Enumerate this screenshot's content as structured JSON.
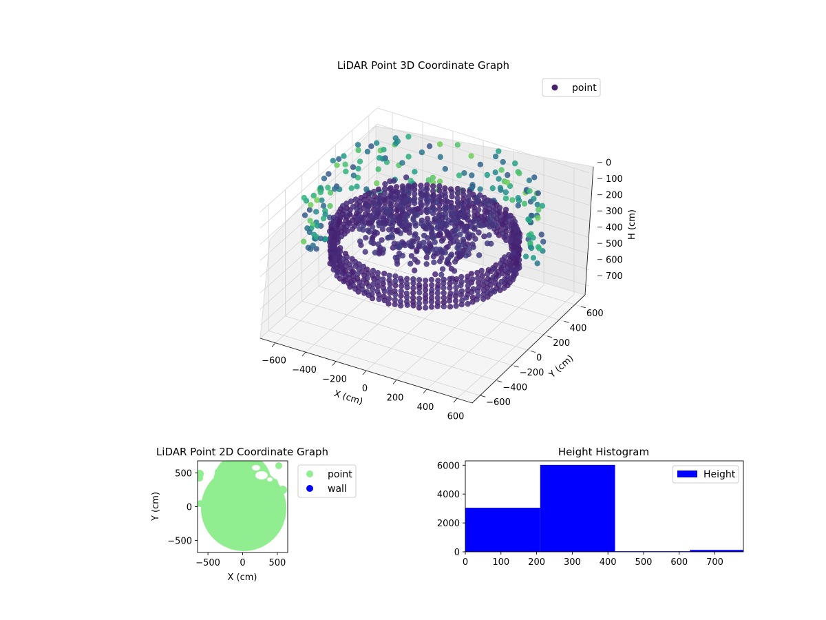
{
  "chart_data": [
    {
      "type": "scatter",
      "projection": "3d",
      "title": "LiDAR Point 3D Coordinate Graph",
      "xlabel": "X (cm)",
      "ylabel": "Y (cm)",
      "zlabel": "H (cm)",
      "xlim": [
        -700,
        700
      ],
      "ylim": [
        -700,
        700
      ],
      "zlim": [
        0,
        780
      ],
      "zaxis_inverted": true,
      "xticks": [
        "−600",
        "−400",
        "−200",
        "0",
        "200",
        "400",
        "600"
      ],
      "yticks": [
        "−600",
        "−400",
        "−200",
        "0",
        "200",
        "400",
        "600"
      ],
      "zticks": [
        "0",
        "100",
        "200",
        "300",
        "400",
        "500",
        "600",
        "700"
      ],
      "colormap": "viridis",
      "grid": true,
      "legend": {
        "position": "upper-right",
        "entries": [
          {
            "label": "point",
            "color": "#46246f"
          }
        ]
      },
      "series": [
        {
          "name": "point",
          "shape": "outer ring wall",
          "radius_cm": 540,
          "height_range_cm": [
            250,
            420
          ]
        },
        {
          "name": "point",
          "shape": "inner dense cluster",
          "x_range_cm": [
            -450,
            250
          ],
          "y_range_cm": [
            -100,
            450
          ],
          "height_range_cm": [
            200,
            450
          ]
        },
        {
          "name": "point",
          "shape": "sparse outer scatter",
          "radius_range_cm": [
            600,
            700
          ],
          "height_range_cm": [
            0,
            350
          ]
        }
      ]
    },
    {
      "type": "scatter",
      "title": "LiDAR Point 2D Coordinate Graph",
      "xlabel": "X (cm)",
      "ylabel": "Y (cm)",
      "xlim": [
        -650,
        650
      ],
      "ylim": [
        -680,
        680
      ],
      "xticks": [
        "−500",
        "0",
        "500"
      ],
      "yticks": [
        "−500",
        "0",
        "500"
      ],
      "legend": {
        "position": "outside-right",
        "entries": [
          {
            "label": "point",
            "color": "#90ee90"
          },
          {
            "label": "wall",
            "color": "#0000ff"
          }
        ]
      },
      "series": [
        {
          "name": "point",
          "color": "#90ee90",
          "shape": "filled disc",
          "center": [
            0,
            -60
          ],
          "radius_cm": 600
        },
        {
          "name": "wall",
          "color": "#0000ff",
          "values": []
        }
      ]
    },
    {
      "type": "bar",
      "subtype": "histogram",
      "title": "Height Histogram",
      "xlabel": "",
      "ylabel": "",
      "xlim": [
        0,
        780
      ],
      "ylim": [
        0,
        6300
      ],
      "xticks": [
        "0",
        "100",
        "200",
        "300",
        "400",
        "500",
        "600",
        "700"
      ],
      "yticks": [
        "0",
        "2000",
        "4000",
        "6000"
      ],
      "color": "#0000ff",
      "legend": {
        "position": "upper-right",
        "entries": [
          {
            "label": "Height",
            "color": "#0000ff"
          }
        ]
      },
      "bins": [
        {
          "start": 0,
          "end": 210,
          "count": 3050
        },
        {
          "start": 210,
          "end": 420,
          "count": 6020
        },
        {
          "start": 420,
          "end": 630,
          "count": 40
        },
        {
          "start": 630,
          "end": 780,
          "count": 130
        }
      ]
    }
  ]
}
